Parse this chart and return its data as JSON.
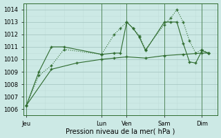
{
  "bg_color": "#cce9e5",
  "grid_major_color": "#a8c8c4",
  "grid_minor_color": "#c0deda",
  "line_color": "#2d6a2d",
  "xlabel": "Pression niveau de la mer( hPa )",
  "ylim": [
    1005.5,
    1014.5
  ],
  "yticks": [
    1006,
    1007,
    1008,
    1009,
    1010,
    1011,
    1012,
    1013,
    1014
  ],
  "xlim": [
    -0.5,
    30.5
  ],
  "xtick_labels": [
    "Jeu",
    "Lun",
    "Ven",
    "Sam",
    "Dim"
  ],
  "xtick_positions": [
    0,
    12,
    16,
    22,
    28
  ],
  "vline_positions": [
    0,
    12,
    16,
    22,
    28
  ],
  "series_dotted_x": [
    0,
    2,
    4,
    6,
    12,
    14,
    15,
    16,
    17,
    18,
    19,
    22,
    23,
    24,
    25,
    26,
    27,
    28,
    29
  ],
  "series_dotted_y": [
    1006.3,
    1008.7,
    1009.5,
    1010.8,
    1010.4,
    1012.0,
    1012.5,
    1013.0,
    1012.5,
    1011.9,
    1010.8,
    1012.8,
    1013.3,
    1014.0,
    1013.0,
    1011.5,
    1010.5,
    1010.8,
    1010.5
  ],
  "series_solid_x": [
    0,
    2,
    4,
    6,
    12,
    14,
    15,
    16,
    17,
    18,
    19,
    22,
    23,
    24,
    25,
    26,
    27,
    28,
    29
  ],
  "series_solid_y": [
    1006.3,
    1009.0,
    1011.0,
    1011.0,
    1010.4,
    1010.5,
    1010.5,
    1013.0,
    1012.5,
    1011.8,
    1010.7,
    1013.0,
    1013.0,
    1013.0,
    1011.3,
    1009.8,
    1009.7,
    1010.7,
    1010.5
  ],
  "series_flat_x": [
    0,
    4,
    8,
    12,
    14,
    16,
    19,
    22,
    25,
    28,
    29
  ],
  "series_flat_y": [
    1006.3,
    1009.2,
    1009.7,
    1010.0,
    1010.1,
    1010.2,
    1010.1,
    1010.3,
    1010.4,
    1010.5,
    1010.5
  ]
}
